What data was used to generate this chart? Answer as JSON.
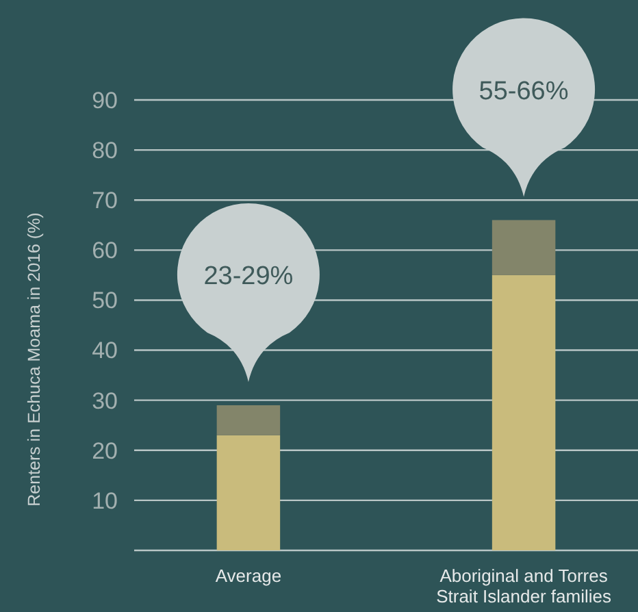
{
  "chart_data": {
    "type": "bar",
    "ylabel": "Renters in Echuca Moama in 2016 (%)",
    "categories": [
      "Average",
      "Aboriginal and Torres Strait Islander families"
    ],
    "stacked": true,
    "series": [
      {
        "color": "#c9bb7c",
        "values": [
          23,
          55
        ]
      },
      {
        "color": "#83856a",
        "values": [
          6,
          11
        ]
      }
    ],
    "ylim": [
      0,
      90
    ],
    "yticks": [
      {
        "value": 0,
        "label": null
      },
      10,
      20,
      30,
      40,
      50,
      60,
      70,
      80,
      90
    ],
    "grid": "y",
    "annotations": [
      "23-29%",
      "55-66%"
    ]
  }
}
